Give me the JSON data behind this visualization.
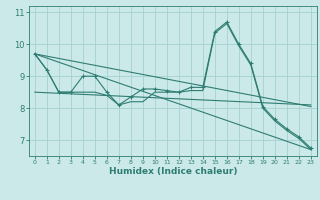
{
  "title": "",
  "xlabel": "Humidex (Indice chaleur)",
  "ylabel": "",
  "xlim": [
    -0.5,
    23.5
  ],
  "ylim": [
    6.5,
    11.2
  ],
  "yticks": [
    7,
    8,
    9,
    10,
    11
  ],
  "xticks": [
    0,
    1,
    2,
    3,
    4,
    5,
    6,
    7,
    8,
    9,
    10,
    11,
    12,
    13,
    14,
    15,
    16,
    17,
    18,
    19,
    20,
    21,
    22,
    23
  ],
  "bg_color": "#cce9e9",
  "grid_color": "#aad4d4",
  "line_color": "#2e7d72",
  "lines": [
    {
      "x": [
        0,
        1,
        2,
        3,
        4,
        5,
        6,
        7,
        8,
        9,
        10,
        11,
        12,
        13,
        14,
        15,
        16,
        17,
        18,
        19,
        20,
        21,
        22,
        23
      ],
      "y": [
        9.7,
        9.2,
        8.5,
        8.5,
        9.0,
        9.0,
        8.5,
        8.1,
        8.35,
        8.6,
        8.6,
        8.55,
        8.5,
        8.65,
        8.65,
        10.4,
        10.7,
        10.0,
        9.4,
        8.05,
        7.65,
        7.35,
        7.1,
        6.75
      ],
      "marker": "+"
    },
    {
      "x": [
        0,
        1,
        2,
        3,
        4,
        5,
        6,
        7,
        8,
        9,
        10,
        11,
        12,
        13,
        14,
        15,
        16,
        17,
        18,
        19,
        20,
        21,
        22,
        23
      ],
      "y": [
        9.7,
        9.2,
        8.5,
        8.5,
        8.5,
        8.5,
        8.4,
        8.1,
        8.2,
        8.2,
        8.5,
        8.5,
        8.5,
        8.55,
        8.55,
        10.35,
        10.65,
        9.95,
        9.35,
        8.0,
        7.6,
        7.3,
        7.05,
        6.7
      ],
      "marker": null
    },
    {
      "x": [
        0,
        23
      ],
      "y": [
        9.7,
        8.05
      ],
      "marker": null
    },
    {
      "x": [
        0,
        23
      ],
      "y": [
        9.7,
        6.7
      ],
      "marker": null
    },
    {
      "x": [
        0,
        23
      ],
      "y": [
        8.5,
        8.1
      ],
      "marker": null
    }
  ]
}
